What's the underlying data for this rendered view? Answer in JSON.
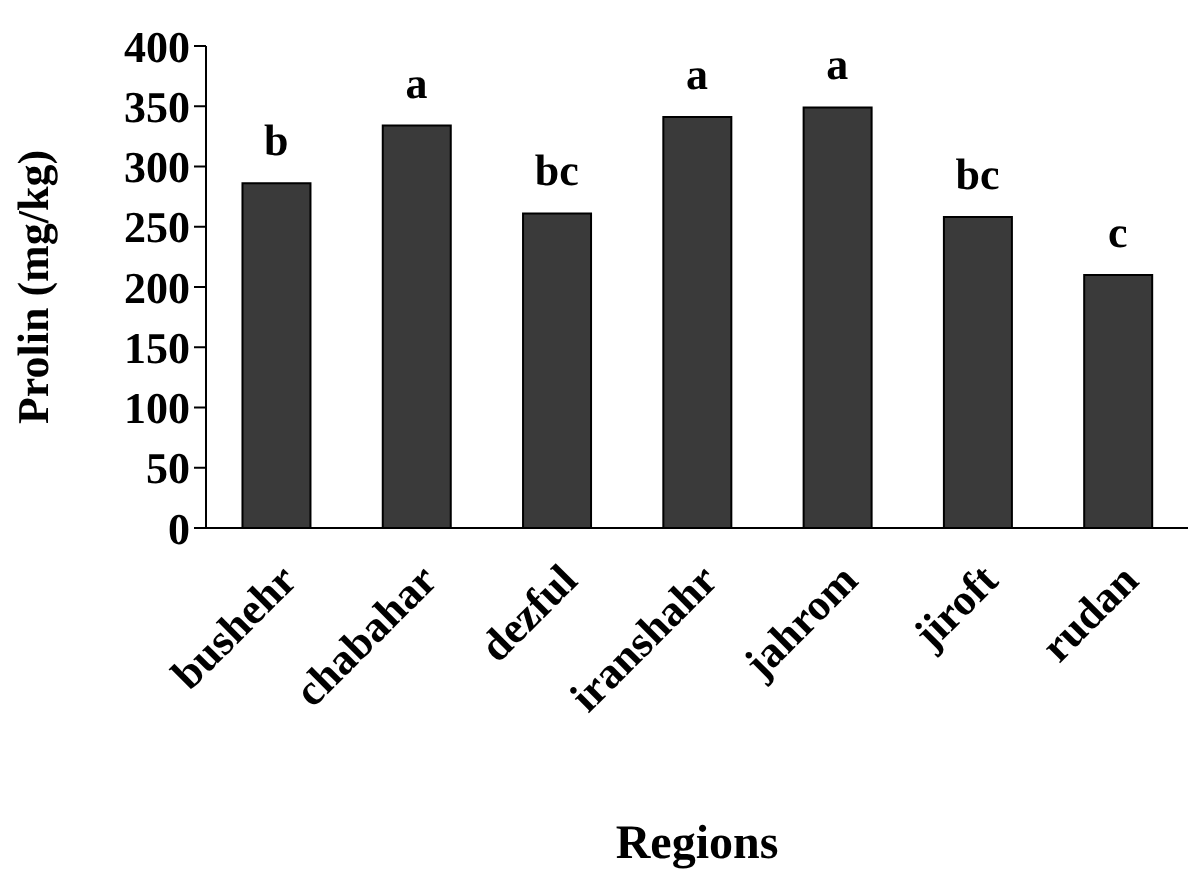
{
  "chart_data": {
    "type": "bar",
    "xlabel": "Regions",
    "ylabel": "Prolin (mg/kg)",
    "categories": [
      "bushehr",
      "chabahar",
      "dezful",
      "iranshahr",
      "jahrom",
      "jiroft",
      "rudan"
    ],
    "values": [
      286,
      334,
      261,
      341,
      349,
      258,
      210
    ],
    "color": "#3a3a3a",
    "ylim": [
      0,
      400
    ],
    "yticks": [
      0,
      50,
      100,
      150,
      200,
      250,
      300,
      350,
      400
    ],
    "grid": false,
    "annotations": [
      {
        "text": "b",
        "x": "bushehr",
        "y": 286
      },
      {
        "text": "a",
        "x": "chabahar",
        "y": 334
      },
      {
        "text": "bc",
        "x": "dezful",
        "y": 261
      },
      {
        "text": "a",
        "x": "iranshahr",
        "y": 341
      },
      {
        "text": "a",
        "x": "jahrom",
        "y": 349
      },
      {
        "text": "bc",
        "x": "jiroft",
        "y": 258
      },
      {
        "text": "c",
        "x": "rudan",
        "y": 210
      }
    ]
  }
}
